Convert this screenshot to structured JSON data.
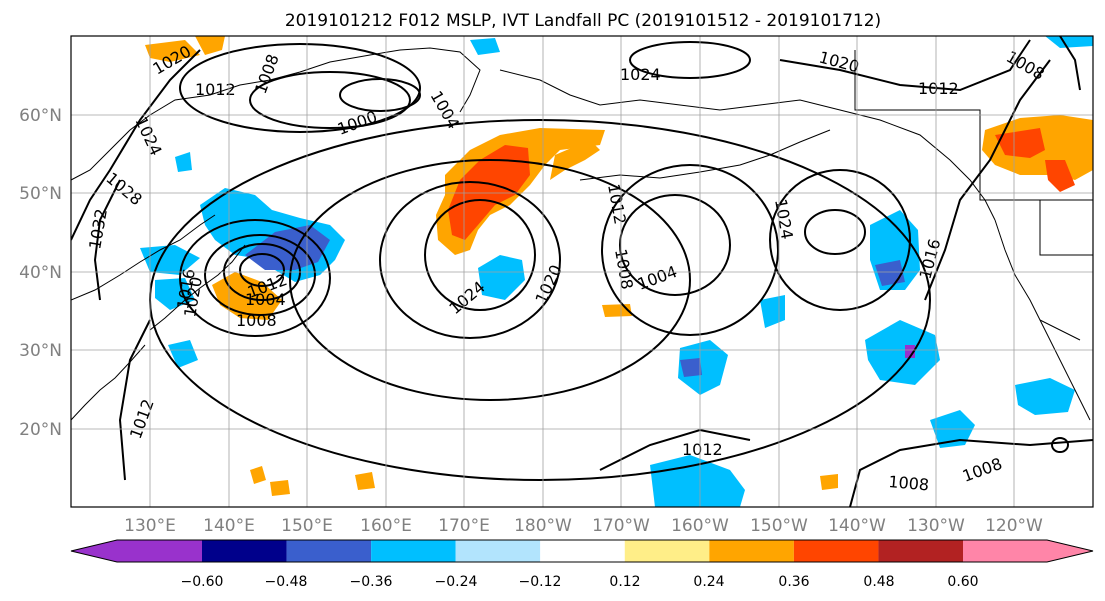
{
  "title": "2019101212 F012 MSLP, IVT Landfall PC (2019101512 - 2019101712)",
  "map": {
    "lon_labels": [
      "130°E",
      "140°E",
      "150°E",
      "160°E",
      "170°E",
      "180°W",
      "170°W",
      "160°W",
      "150°W",
      "140°W",
      "130°W",
      "120°W"
    ],
    "lat_labels": [
      "60°N",
      "50°N",
      "40°N",
      "30°N",
      "20°N"
    ],
    "extent": {
      "lon_min": 120,
      "lon_max": 250,
      "lat_min": 10,
      "lat_max": 70
    }
  },
  "contours": {
    "field": "MSLP",
    "labels": [
      "1020",
      "1012",
      "1008",
      "1024",
      "1028",
      "1032",
      "1000",
      "1004",
      "1020",
      "1024",
      "1020",
      "1008",
      "1012",
      "1012",
      "1004",
      "1004",
      "1024",
      "1016",
      "1016",
      "1008",
      "1012",
      "1008",
      "1024",
      "1020",
      "1012",
      "1012",
      "1008",
      "1008"
    ]
  },
  "colorbar": {
    "ticks": [
      "−0.60",
      "−0.48",
      "−0.36",
      "−0.24",
      "−0.12",
      "0.12",
      "0.24",
      "0.36",
      "0.48",
      "0.60"
    ],
    "colors": [
      "#9932cc",
      "#00008b",
      "#3a5fcd",
      "#00bfff",
      "#b2e4fd",
      "#ffffff",
      "#ffee88",
      "#ffa500",
      "#ff4500",
      "#b22222",
      "#ff85a8"
    ]
  }
}
